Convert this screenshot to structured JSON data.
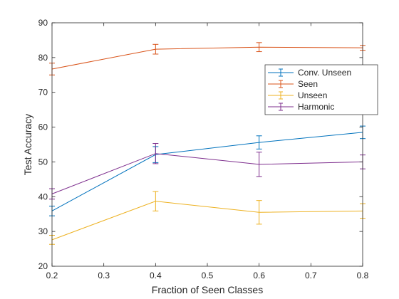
{
  "chart_data": {
    "type": "line",
    "title": "",
    "xlabel": "Fraction of Seen Classes",
    "ylabel": "Test Accuracy",
    "xlim": [
      0.2,
      0.8
    ],
    "ylim": [
      20,
      90
    ],
    "xticks": [
      0.2,
      0.3,
      0.4,
      0.5,
      0.6,
      0.7,
      0.8
    ],
    "xtick_labels": [
      "0.2",
      "0.3",
      "0.4",
      "0.5",
      "0.6",
      "0.7",
      "0.8"
    ],
    "yticks": [
      20,
      30,
      40,
      50,
      60,
      70,
      80,
      90
    ],
    "ytick_labels": [
      "20",
      "30",
      "40",
      "50",
      "60",
      "70",
      "80",
      "90"
    ],
    "grid": false,
    "error_bars": true,
    "legend_position": "upper-right",
    "x": [
      0.2,
      0.4,
      0.6,
      0.8
    ],
    "series": [
      {
        "name": "Conv. Unseen",
        "color": "#0072BD",
        "values": [
          35.9,
          52.1,
          55.6,
          58.5
        ],
        "errors": [
          1.4,
          2.3,
          1.9,
          1.8
        ]
      },
      {
        "name": "Seen",
        "color": "#D95319",
        "values": [
          76.7,
          82.4,
          83.0,
          82.8
        ],
        "errors": [
          1.7,
          1.4,
          1.3,
          0.7
        ]
      },
      {
        "name": "Unseen",
        "color": "#EDB120",
        "values": [
          27.6,
          38.7,
          35.5,
          35.9
        ],
        "errors": [
          1.3,
          2.8,
          3.4,
          2.1
        ]
      },
      {
        "name": "Harmonic",
        "color": "#7E2F8E",
        "values": [
          40.8,
          52.4,
          49.3,
          50.0
        ],
        "errors": [
          1.5,
          2.9,
          3.5,
          2.0
        ]
      }
    ]
  }
}
